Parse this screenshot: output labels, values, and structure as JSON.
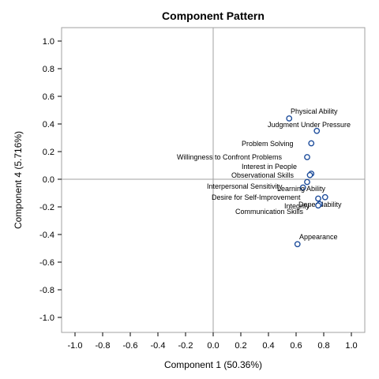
{
  "chart_data": {
    "type": "scatter",
    "title": "Component Pattern",
    "xlabel": "Component 1 (50.36%)",
    "ylabel": "Component 4 (5.716%)",
    "xlim": [
      -1.1,
      1.1
    ],
    "ylim": [
      -1.1,
      1.1
    ],
    "xticks": [
      "-1.0",
      "-0.8",
      "-0.6",
      "-0.4",
      "-0.2",
      "0.0",
      "0.2",
      "0.4",
      "0.6",
      "0.8",
      "1.0"
    ],
    "yticks": [
      "1.0",
      "0.8",
      "0.6",
      "0.4",
      "0.2",
      "0.0",
      "-0.2",
      "-0.4",
      "-0.6",
      "-0.8",
      "-1.0"
    ],
    "reference_lines": {
      "x": 0,
      "y": 0
    },
    "marker_color": "#1f4e9c",
    "points": [
      {
        "label": "Physical Ability",
        "x": 0.55,
        "y": 0.44
      },
      {
        "label": "Judgment Under Pressure",
        "x": 0.75,
        "y": 0.35
      },
      {
        "label": "Problem Solving",
        "x": 0.71,
        "y": 0.26
      },
      {
        "label": "Willingness to Confront Problems",
        "x": 0.68,
        "y": 0.16
      },
      {
        "label": "Interest in People",
        "x": 0.71,
        "y": 0.04
      },
      {
        "label": "Observational Skills",
        "x": 0.7,
        "y": 0.03
      },
      {
        "label": "Interpersonal Sensitivity",
        "x": 0.68,
        "y": -0.02
      },
      {
        "label": "Learning Ability",
        "x": 0.65,
        "y": -0.06
      },
      {
        "label": "Desire for Self-Improvement",
        "x": 0.76,
        "y": -0.14
      },
      {
        "label": "Dependability",
        "x": 0.81,
        "y": -0.13
      },
      {
        "label": "Integrity",
        "x": 0.77,
        "y": -0.18
      },
      {
        "label": "Communication Skills",
        "x": 0.76,
        "y": -0.19
      },
      {
        "label": "Appearance",
        "x": 0.61,
        "y": -0.47
      }
    ]
  }
}
